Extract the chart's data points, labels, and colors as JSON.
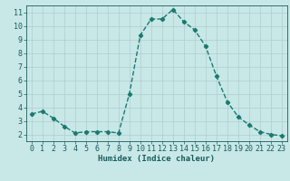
{
  "x": [
    0,
    1,
    2,
    3,
    4,
    5,
    6,
    7,
    8,
    9,
    10,
    11,
    12,
    13,
    14,
    15,
    16,
    17,
    18,
    19,
    20,
    21,
    22,
    23
  ],
  "y": [
    3.5,
    3.7,
    3.2,
    2.6,
    2.1,
    2.2,
    2.2,
    2.2,
    2.1,
    5.0,
    9.3,
    10.5,
    10.5,
    11.2,
    10.3,
    9.7,
    8.5,
    6.3,
    4.4,
    3.3,
    2.7,
    2.2,
    2.0,
    1.9
  ],
  "line_color": "#1a7a6e",
  "bg_color": "#c8e8e8",
  "grid_color": "#b0cccc",
  "xlabel": "Humidex (Indice chaleur)",
  "xlim": [
    -0.5,
    23.5
  ],
  "ylim": [
    1.5,
    11.5
  ],
  "yticks": [
    2,
    3,
    4,
    5,
    6,
    7,
    8,
    9,
    10,
    11
  ],
  "xticks": [
    0,
    1,
    2,
    3,
    4,
    5,
    6,
    7,
    8,
    9,
    10,
    11,
    12,
    13,
    14,
    15,
    16,
    17,
    18,
    19,
    20,
    21,
    22,
    23
  ],
  "marker": "D",
  "marker_size": 2.2,
  "line_width": 1.0,
  "font_color": "#1a5a5a",
  "tick_fontsize": 6.0,
  "label_fontsize": 6.5
}
